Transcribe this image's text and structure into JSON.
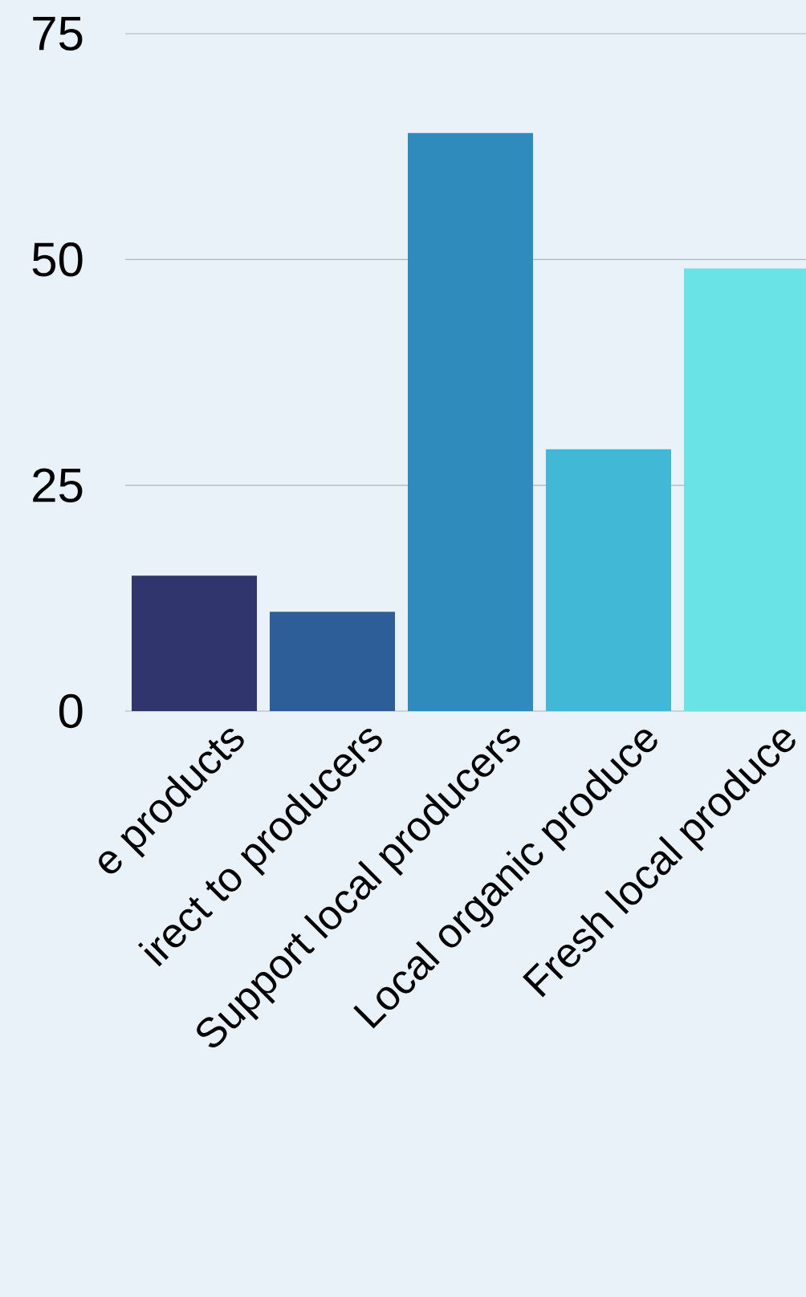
{
  "chart_data": {
    "type": "bar",
    "categories": [
      "e products",
      "irect to producers",
      "Support local producers",
      "Local organic produce",
      "Fresh local produce"
    ],
    "values": [
      15,
      11,
      64,
      29,
      49
    ],
    "colors": [
      "#31356e",
      "#2e5e98",
      "#2e8bbb",
      "#42b8d7",
      "#6ae3e6"
    ],
    "ylim": [
      0,
      75
    ],
    "yticks": [
      0,
      25,
      50,
      75
    ],
    "grid": "y"
  }
}
